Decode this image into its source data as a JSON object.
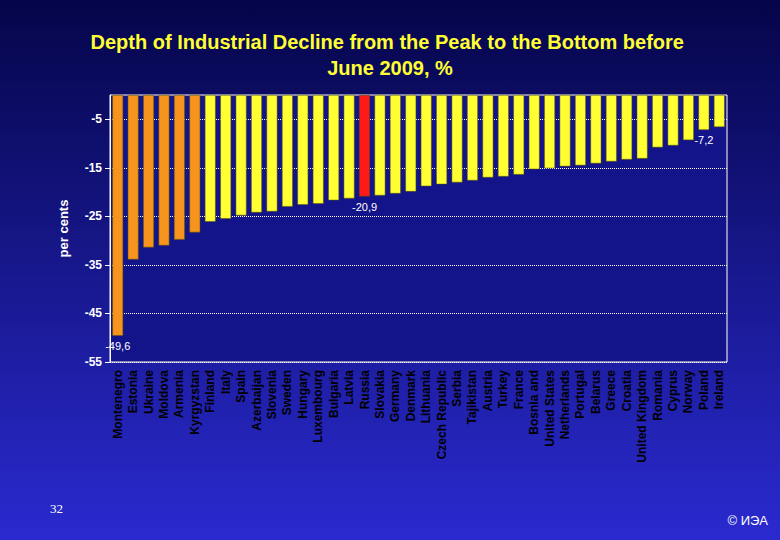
{
  "chart_data": {
    "type": "bar",
    "title": "Depth of Industrial Decline from the Peak to the Bottom before June 2009, %",
    "ylabel": "per cents",
    "categories": [
      "Montenegro",
      "Estonia",
      "Ukraine",
      "Moldova",
      "Armenia",
      "Kyrgyzstan",
      "Finland",
      "Italy",
      "Spain",
      "Azerbaijan",
      "Slovenia",
      "Sweden",
      "Hungary",
      "Luxembourg",
      "Bulgaria",
      "Latvia",
      "Russia",
      "Slovakia",
      "Germany",
      "Denmark",
      "Lithuania",
      "Czech Republic",
      "Serbia",
      "Tajikistan",
      "Austria",
      "Turkey",
      "France",
      "Bosnia and",
      "United States",
      "Netherlands",
      "Portugal",
      "Belarus",
      "Greece",
      "Croatia",
      "United Kingdom",
      "Romania",
      "Cyprus",
      "Norway",
      "Poland",
      "Ireland"
    ],
    "values": [
      -49.6,
      -33.9,
      -31.4,
      -31.0,
      -29.8,
      -28.3,
      -26.1,
      -25.5,
      -24.8,
      -24.2,
      -24.0,
      -23.0,
      -22.6,
      -22.4,
      -21.7,
      -21.3,
      -20.9,
      -20.7,
      -20.3,
      -19.9,
      -18.8,
      -18.4,
      -18.0,
      -17.6,
      -17.0,
      -16.8,
      -16.4,
      -15.3,
      -15.1,
      -14.7,
      -14.5,
      -14.1,
      -13.7,
      -13.3,
      -13.1,
      -10.8,
      -10.4,
      -9.3,
      -7.2,
      -6.6
    ],
    "value_labels": [
      "-49,6",
      null,
      null,
      null,
      null,
      null,
      null,
      null,
      null,
      null,
      null,
      null,
      null,
      null,
      null,
      null,
      "-20,9",
      null,
      null,
      null,
      null,
      null,
      null,
      null,
      null,
      null,
      null,
      null,
      null,
      null,
      null,
      null,
      null,
      null,
      null,
      null,
      null,
      null,
      "-7,2",
      null
    ],
    "data_labels": true,
    "colors": [
      "#f7941d",
      "#f7941d",
      "#f7941d",
      "#f7941d",
      "#f7941d",
      "#f7941d",
      "#ffff33",
      "#ffff33",
      "#ffff33",
      "#ffff33",
      "#ffff33",
      "#ffff33",
      "#ffff33",
      "#ffff33",
      "#ffff33",
      "#ffff33",
      "#ff1a1a",
      "#ffff33",
      "#ffff33",
      "#ffff33",
      "#ffff33",
      "#ffff33",
      "#ffff33",
      "#ffff33",
      "#ffff33",
      "#ffff33",
      "#ffff33",
      "#ffff33",
      "#ffff33",
      "#ffff33",
      "#ffff33",
      "#ffff33",
      "#ffff33",
      "#ffff33",
      "#ffff33",
      "#ffff33",
      "#ffff33",
      "#ffff33",
      "#ffff33",
      "#ffff33"
    ],
    "ylim": [
      -55,
      0
    ],
    "yticks": [
      -55,
      -45,
      -35,
      -25,
      -15,
      -5
    ],
    "grid": true,
    "annotations": [
      "32",
      "© ИЭА"
    ]
  }
}
